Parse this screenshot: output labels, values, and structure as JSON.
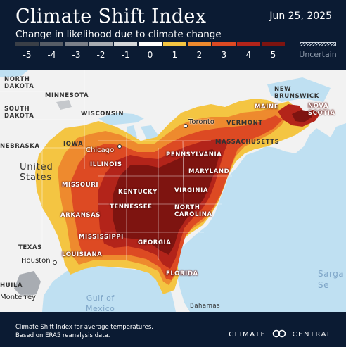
{
  "header": {
    "title": "Climate Shift Index",
    "date": "Jun 25, 2025",
    "subtitle": "Change in likelihood due to climate change"
  },
  "scale": {
    "levels": [
      {
        "label": "-5",
        "color": "#3a3f47"
      },
      {
        "label": "-4",
        "color": "#575d66"
      },
      {
        "label": "-3",
        "color": "#7b8089"
      },
      {
        "label": "-2",
        "color": "#a8acb2"
      },
      {
        "label": "-1",
        "color": "#d5d7da"
      },
      {
        "label": "0",
        "color": "#ffffff"
      },
      {
        "label": "1",
        "color": "#f4c542"
      },
      {
        "label": "2",
        "color": "#ee8a2e"
      },
      {
        "label": "3",
        "color": "#dd4a23"
      },
      {
        "label": "4",
        "color": "#b3241a"
      },
      {
        "label": "5",
        "color": "#7e1410"
      }
    ],
    "uncertain_label": "Uncertain"
  },
  "map": {
    "colors": {
      "water": "#bfe0f2",
      "land": "#f2f2f2",
      "border": "#ffffff"
    },
    "labels": {
      "north_dakota": "NORTH\nDAKOTA",
      "minnesota": "MINNESOTA",
      "south_dakota": "SOUTH\nDAKOTA",
      "wisconsin": "WISCONSIN",
      "nebraska": "NEBRASKA",
      "iowa": "IOWA",
      "chicago": "Chicago",
      "illinois": "ILLINOIS",
      "united_states": "United\nStates",
      "missouri": "MISSOURI",
      "kentucky": "KENTUCKY",
      "virginia": "VIRGINIA",
      "maryland": "MARYLAND",
      "pennsylvania": "PENNSYLVANIA",
      "massachusetts": "MASSACHUSETTS",
      "vermont": "VERMONT",
      "toronto": "Toronto",
      "maine": "MAINE",
      "new_brunswick": "NEW\nBRUNSWICK",
      "nova_scotia": "NOVA\nSCOTIA",
      "arkansas": "ARKANSAS",
      "tennessee": "TENNESSEE",
      "north_carolina": "NORTH\nCAROLINA",
      "mississippi": "MISSISSIPPI",
      "georgia": "GEORGIA",
      "texas": "TEXAS",
      "louisiana": "LOUISIANA",
      "houston": "Houston",
      "florida": "FLORIDA",
      "coahuila": "HUILA",
      "monterrey": "Monterrey",
      "gulf_of_mexico": "Gulf of\nMexico",
      "bahamas": "Bahamas",
      "sargasso": "Sarga\nSe"
    }
  },
  "footer": {
    "note_line1": "Climate Shift Index for average temperatures.",
    "note_line2": "Based on ERA5 reanalysis data.",
    "brand_left": "CLIMATE",
    "brand_right": "CENTRAL"
  }
}
